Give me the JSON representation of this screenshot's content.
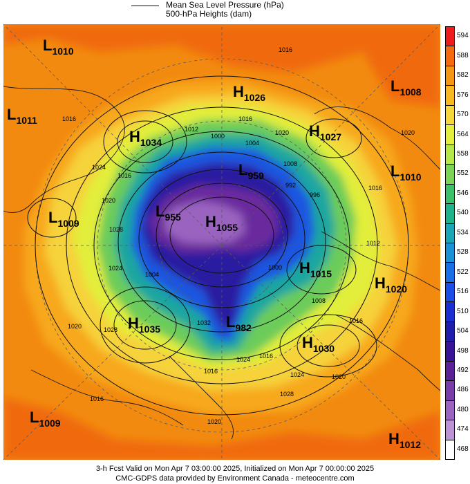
{
  "legend": {
    "line_label": "Mean Sea Level Pressure (hPa)",
    "heights_label": "500-hPa Heights (dam)"
  },
  "map": {
    "pressure_systems": [
      {
        "type": "L",
        "value": "1010"
      },
      {
        "type": "L",
        "value": "1011"
      },
      {
        "type": "H",
        "value": "1034"
      },
      {
        "type": "L",
        "value": "1009"
      },
      {
        "type": "H",
        "value": "1026"
      },
      {
        "type": "H",
        "value": "1027"
      },
      {
        "type": "L",
        "value": "1008"
      },
      {
        "type": "L",
        "value": "1010"
      },
      {
        "type": "L",
        "value": "959"
      },
      {
        "type": "L",
        "value": "955"
      },
      {
        "type": "H",
        "value": "1055"
      },
      {
        "type": "H",
        "value": "1015"
      },
      {
        "type": "H",
        "value": "1020"
      },
      {
        "type": "H",
        "value": "1035"
      },
      {
        "type": "L",
        "value": "982"
      },
      {
        "type": "H",
        "value": "1030"
      },
      {
        "type": "L",
        "value": "1009"
      },
      {
        "type": "H",
        "value": "1012"
      }
    ],
    "isobar_labels": [
      "1016",
      "1012",
      "1016",
      "1004",
      "1000",
      "1020",
      "1008",
      "1016",
      "1024",
      "1016",
      "1020",
      "996",
      "992",
      "1028",
      "1004",
      "1024",
      "1000",
      "1016",
      "1012",
      "1008",
      "1032",
      "1028",
      "1024",
      "1020",
      "1016",
      "1016",
      "1020",
      "1028",
      "1024",
      "1020",
      "1016",
      "1020",
      "1016"
    ]
  },
  "colorbar": {
    "unit": "dam",
    "levels": [
      {
        "label": "594",
        "color": "#ee1c1c"
      },
      {
        "label": "588",
        "color": "#f56a0e"
      },
      {
        "label": "582",
        "color": "#f59614"
      },
      {
        "label": "576",
        "color": "#f8b820"
      },
      {
        "label": "570",
        "color": "#f5d63c"
      },
      {
        "label": "564",
        "color": "#e4ee3c"
      },
      {
        "label": "558",
        "color": "#b6e84a"
      },
      {
        "label": "552",
        "color": "#7cd456"
      },
      {
        "label": "546",
        "color": "#3cc06a"
      },
      {
        "label": "540",
        "color": "#20b28a"
      },
      {
        "label": "534",
        "color": "#1aa6b6"
      },
      {
        "label": "528",
        "color": "#1a92d6"
      },
      {
        "label": "522",
        "color": "#1a6ee6"
      },
      {
        "label": "516",
        "color": "#1a4ee6"
      },
      {
        "label": "510",
        "color": "#1a2ed2"
      },
      {
        "label": "504",
        "color": "#1e1eaa"
      },
      {
        "label": "498",
        "color": "#3a1496"
      },
      {
        "label": "492",
        "color": "#5a2296"
      },
      {
        "label": "486",
        "color": "#7a3ca8"
      },
      {
        "label": "480",
        "color": "#9a64c0"
      },
      {
        "label": "474",
        "color": "#bc94d6"
      },
      {
        "label": "468",
        "color": "#ffffff"
      }
    ]
  },
  "footer": {
    "line1": "3-h Fcst Valid on Mon Apr  7 03:00:00 2025, Initialized on Mon Apr  7 00:00:00 2025",
    "line2": "CMC-GDPS data provided by Environment Canada - meteocentre.com"
  }
}
